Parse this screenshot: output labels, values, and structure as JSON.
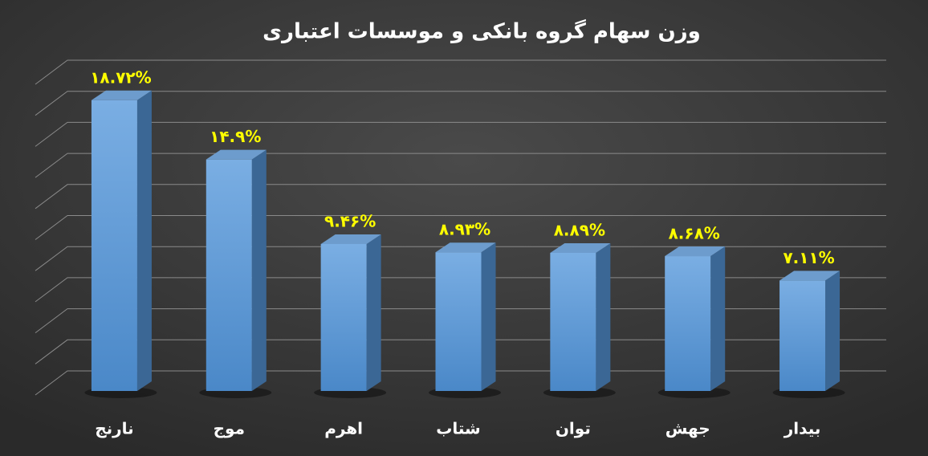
{
  "chart_data": {
    "type": "bar3d",
    "title": "وزن سهام گروه بانکی و موسسات اعتباری",
    "categories": [
      "نارنج",
      "موج",
      "اهرم",
      "شتاب",
      "توان",
      "جهش",
      "بیدار"
    ],
    "values": [
      18.72,
      14.9,
      9.46,
      8.93,
      8.89,
      8.68,
      7.11
    ],
    "value_labels": [
      "۱۸.۷۲%",
      "۱۴.۹%",
      "۹.۴۶%",
      "۸.۹۳%",
      "۸.۸۹%",
      "۸.۶۸%",
      "۷.۱۱%"
    ],
    "color": "#5b9bd5",
    "ylim": [
      0,
      20
    ],
    "yticks": [
      0,
      2,
      4,
      6,
      8,
      10,
      12,
      14,
      16,
      18,
      20
    ],
    "grid": true
  }
}
